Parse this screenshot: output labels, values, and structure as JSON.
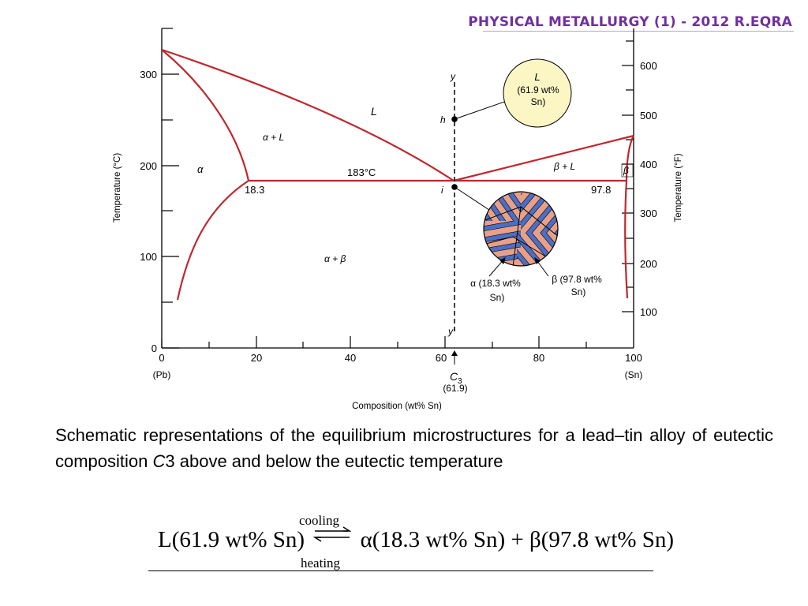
{
  "header": {
    "title": "Physical Metallurgy (1) - 2012 R.Eqra"
  },
  "diagram": {
    "y_axis_left": {
      "label": "Temperature (°C)",
      "ticks": [
        "0",
        "100",
        "200",
        "300"
      ]
    },
    "y_axis_right": {
      "label": "Temperature (°F)",
      "ticks": [
        "100",
        "200",
        "300",
        "400",
        "500",
        "600"
      ]
    },
    "x_axis": {
      "label": "Composition (wt% Sn)",
      "ticks": [
        "0",
        "20",
        "40",
        "60",
        "80",
        "100"
      ],
      "left_end": "(Pb)",
      "right_end": "(Sn)"
    },
    "regions": {
      "liquid": "L",
      "alpha_liquid": "α + L",
      "alpha": "α",
      "alpha_beta": "α + β",
      "beta_liquid": "β + L",
      "beta": "β"
    },
    "eutectic_temperature": "183°C",
    "alpha_solubility": "18.3",
    "beta_solubility": "97.8",
    "points": {
      "y": "y",
      "h": "h",
      "i": "i",
      "y_prime": "y′"
    },
    "c3_label": "C",
    "c3_sub": "3",
    "c3_value": "(61.9)",
    "liquid_callout": [
      "L",
      "(61.9 wt%",
      "Sn)"
    ],
    "alpha_callout": [
      "α (18.3 wt%",
      "Sn)"
    ],
    "beta_callout": [
      "β (97.8 wt%",
      "Sn)"
    ],
    "colors": {
      "phase_line": "#c0272d",
      "callout_fill": "#fbf6c4",
      "lamella_pink": "#e8a08a",
      "lamella_blue": "#4b6fc4"
    }
  },
  "caption": {
    "pre": "Schematic representations of the equilibrium microstructures for a lead–tin alloy of eutectic composition ",
    "var": "C",
    "post": "3 above and below the eutectic temperature"
  },
  "equation": {
    "left": "L(61.9 wt% Sn)",
    "arrow_top": "cooling",
    "arrow_bottom": "heating",
    "right": "α(18.3 wt% Sn) + β(97.8 wt% Sn)"
  }
}
